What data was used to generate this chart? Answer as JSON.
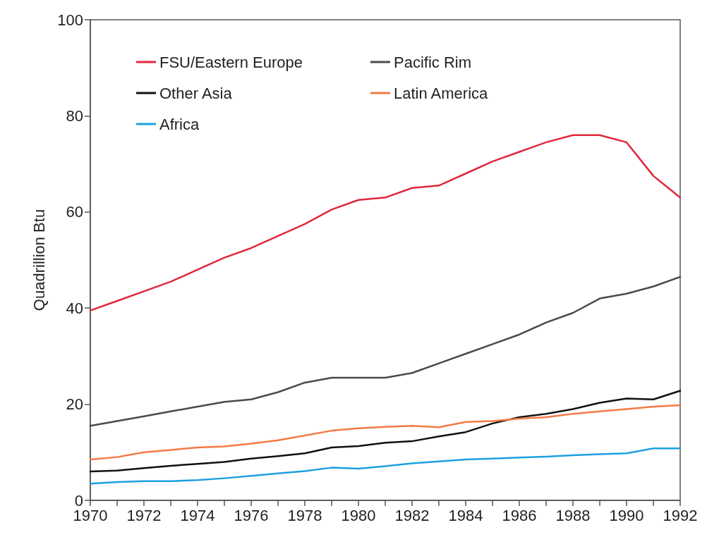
{
  "chart_data": {
    "type": "line",
    "ylabel": "Quadrillion Btu",
    "x": [
      1970,
      1971,
      1972,
      1973,
      1974,
      1975,
      1976,
      1977,
      1978,
      1979,
      1980,
      1981,
      1982,
      1983,
      1984,
      1985,
      1986,
      1987,
      1988,
      1989,
      1990,
      1991,
      1992
    ],
    "series": [
      {
        "name": "FSU/Eastern Europe",
        "color": "#e0283c",
        "values": [
          39.5,
          41.5,
          43.5,
          45.5,
          48,
          50.5,
          52.5,
          55,
          57.5,
          60.5,
          62.5,
          63,
          65,
          65.5,
          68,
          70.5,
          72.5,
          74.5,
          76,
          76,
          74.5,
          67.5,
          63
        ]
      },
      {
        "name": "Pacific Rim",
        "color": "#4a4a4a",
        "values": [
          15.5,
          16.5,
          17.5,
          18.5,
          19.5,
          20.5,
          21,
          22.5,
          24.5,
          25.5,
          25.5,
          25.5,
          26.5,
          28.5,
          30.5,
          32.5,
          34.5,
          37,
          39,
          42,
          43,
          44.5,
          46.5
        ]
      },
      {
        "name": "Other Asia",
        "color": "#111111",
        "values": [
          6,
          6.2,
          6.7,
          7.2,
          7.6,
          8,
          8.7,
          9.2,
          9.8,
          11,
          11.3,
          12,
          12.3,
          13.3,
          14.2,
          16,
          17.3,
          18,
          19,
          20.3,
          21.2,
          21,
          22.8
        ]
      },
      {
        "name": "Latin America",
        "color": "#f47a45",
        "values": [
          8.5,
          9,
          10,
          10.5,
          11,
          11.2,
          11.8,
          12.5,
          13.5,
          14.5,
          15,
          15.3,
          15.5,
          15.2,
          16.3,
          16.5,
          17,
          17.3,
          18,
          18.5,
          19,
          19.5,
          19.8
        ]
      },
      {
        "name": "Africa",
        "color": "#1ea0e0",
        "values": [
          3.5,
          3.8,
          4,
          4,
          4.2,
          4.6,
          5.1,
          5.6,
          6.1,
          6.8,
          6.6,
          7.1,
          7.7,
          8.1,
          8.5,
          8.7,
          8.9,
          9.1,
          9.4,
          9.6,
          9.8,
          10.8,
          10.8
        ]
      }
    ],
    "xlim": [
      1970,
      1992
    ],
    "xticks": [
      1970,
      {
        "value": 1971,
        "label": null
      },
      1972,
      {
        "value": 1973,
        "label": null
      },
      1974,
      {
        "value": 1975,
        "label": null
      },
      1976,
      {
        "value": 1977,
        "label": null
      },
      1978,
      {
        "value": 1979,
        "label": null
      },
      1980,
      {
        "value": 1981,
        "label": null
      },
      1982,
      {
        "value": 1983,
        "label": null
      },
      1984,
      {
        "value": 1985,
        "label": null
      },
      1986,
      {
        "value": 1987,
        "label": null
      },
      1988,
      {
        "value": 1989,
        "label": null
      },
      1990,
      {
        "value": 1991,
        "label": null
      },
      1992
    ],
    "ylim": [
      0,
      100
    ],
    "yticks": [
      0,
      20,
      40,
      60,
      80,
      100
    ],
    "grid": false,
    "legend": "top left",
    "marker": "none",
    "line_style": "solid"
  }
}
